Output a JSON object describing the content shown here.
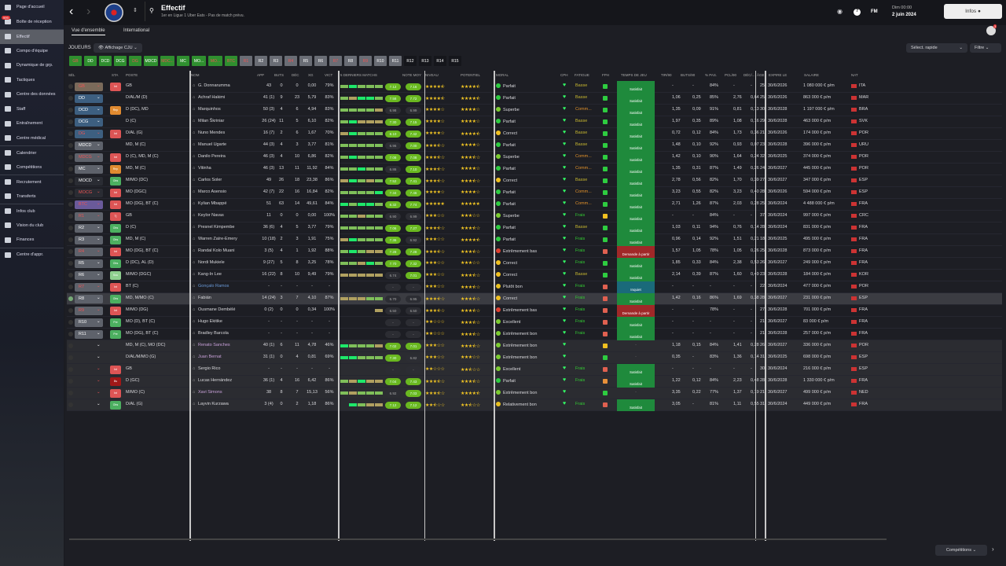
{
  "sidebar": {
    "items": [
      "Page d'accueil",
      "Boîte de réception",
      "Effectif",
      "Compo d'équipe",
      "Dynamique de grp.",
      "Tactiques",
      "Centre des données",
      "Staff",
      "Entraînement",
      "Centre médical",
      "Calendrier",
      "Compétitions",
      "Recrutement",
      "Transferts",
      "Infos club",
      "Vision du club",
      "Finances",
      "Centre d'appr."
    ],
    "inbox_badge": "999",
    "active": "Effectif"
  },
  "header": {
    "title": "Effectif",
    "subtitle": "1er en Ligue 1 Uber Eats - Pas de match prévu.",
    "manager": "FM",
    "time": "Dim 00:00",
    "date": "2 juin 2024",
    "infos": "Infos",
    "notif": "3"
  },
  "tabs": [
    "Vue d'ensemble",
    "International"
  ],
  "toolbar": {
    "label": "JOUEURS",
    "view": "Affichage CJU",
    "quick": "Sélect. rapide",
    "filter": "Filtre"
  },
  "formation_buttons": [
    {
      "l": "GB",
      "c": "#2f8f2f",
      "r": true
    },
    {
      "l": "DD",
      "c": "#2f8f2f"
    },
    {
      "l": "DCD",
      "c": "#2f8f2f"
    },
    {
      "l": "DCG",
      "c": "#2f8f2f"
    },
    {
      "l": "DG",
      "c": "#2f8f2f",
      "r": true
    },
    {
      "l": "MDCD",
      "c": "#2f8f2f"
    },
    {
      "l": "MDC...",
      "c": "#2f8f2f",
      "r": true
    },
    {
      "l": "MC",
      "c": "#2f8f2f"
    },
    {
      "l": "MO...",
      "c": "#2f8f2f"
    },
    {
      "l": "MO...",
      "c": "#2f8f2f",
      "r": true
    },
    {
      "l": "BTC",
      "c": "#2f8f2f",
      "r": true
    },
    {
      "l": "R1",
      "c": "#6a6d75",
      "r": true
    },
    {
      "l": "R2",
      "c": "#6a6d75"
    },
    {
      "l": "R3",
      "c": "#6a6d75"
    },
    {
      "l": "R4",
      "c": "#6a6d75",
      "r": true
    },
    {
      "l": "R5",
      "c": "#6a6d75"
    },
    {
      "l": "R6",
      "c": "#6a6d75"
    },
    {
      "l": "R7",
      "c": "#6a6d75",
      "r": true
    },
    {
      "l": "R8",
      "c": "#6a6d75"
    },
    {
      "l": "R9",
      "c": "#6a6d75",
      "r": true
    },
    {
      "l": "R10",
      "c": "#6a6d75"
    },
    {
      "l": "R11",
      "c": "#6a6d75"
    },
    {
      "l": "R12",
      "c": "#15161b"
    },
    {
      "l": "R13",
      "c": "#15161b"
    },
    {
      "l": "R14",
      "c": "#15161b"
    },
    {
      "l": "R15",
      "c": "#15161b"
    }
  ],
  "columns": [
    "SÉL",
    "STA",
    "POSTE",
    "NOM",
    "APP",
    "BUTS",
    "DÉC",
    "XG",
    "VICT",
    "5 DERNIERS MATCHS",
    "NOTE MOY",
    "NIVEAU",
    "POTENTIEL",
    "MORAL",
    "CPH",
    "FATIGUE",
    "FPH",
    "TEMPS DE JEU",
    "TIR/90",
    "BUTS/90",
    "% PAS.",
    "PCL/90",
    "DÉC/...",
    "ÂGE",
    "EXPIRE LE",
    "SALAIRE",
    "NAT"
  ],
  "players": [
    [
      "GB",
      "#7a6a5a",
      1,
      "Int",
      "GB",
      "G. Donnarumma",
      "43",
      "0",
      "0",
      "0,00",
      "79%",
      "gGggg",
      "7.12",
      "7.16",
      4.5,
      4.5,
      "Parfait",
      "Basse",
      "g",
      "Satisfait",
      "-",
      "-",
      "84%",
      "-",
      "-",
      "25",
      "30/6/2026",
      "1 080 000 € p/m",
      "ITA"
    ],
    [
      "DD",
      "#3d5f80",
      0,
      "",
      "D/AL/M (D)",
      "Achraf Hakimi",
      "41 (1)",
      "9",
      "23",
      "5,79",
      "83%",
      "goGGg",
      "7.58",
      "7.72",
      4.5,
      4.5,
      "Parfait",
      "Basse",
      "g",
      "Satisfait",
      "1,06",
      "0,25",
      "85%",
      "2,76",
      "0,64",
      "25",
      "30/6/2026",
      "863 000 € p/m",
      "MAR"
    ],
    [
      "DCD",
      "#3d5f80",
      0,
      "Rep",
      "D (DC), MD",
      "Marquinhos",
      "50 (3)",
      "4",
      "6",
      "4,94",
      "83%",
      "ggggo",
      "6.98",
      "6.99",
      4,
      4,
      "Superbe",
      "Comm...",
      "g",
      "Satisfait",
      "1,35",
      "0,09",
      "91%",
      "0,81",
      "0,13",
      "30",
      "30/6/2028",
      "1 197 000 € p/m",
      "BRA"
    ],
    [
      "DCG",
      "#3d5f80",
      0,
      "",
      "D (C)",
      "Milan Škriniar",
      "26 (24)",
      "11",
      "5",
      "6,10",
      "82%",
      "gGooo",
      "7.30",
      "7.15",
      4,
      4,
      "Parfait",
      "Basse",
      "g",
      "Satisfait",
      "1,97",
      "0,35",
      "89%",
      "1,08",
      "0,16",
      "29",
      "30/6/2028",
      "463 000 € p/m",
      "SVK"
    ],
    [
      "DG",
      "#3d5f80",
      1,
      "Int",
      "D/AL (G)",
      "Nuno Mendes",
      "16 (7)",
      "2",
      "6",
      "1,67",
      "70%",
      "oGggg",
      "8.10",
      "7.42",
      4,
      4.5,
      "Correct",
      "Basse",
      "g",
      "Satisfait",
      "0,72",
      "0,12",
      "84%",
      "1,73",
      "0,36",
      "21",
      "30/6/2026",
      "174 000 € p/m",
      "POR"
    ],
    [
      "MDCD",
      "#5e626b",
      0,
      "",
      "MD, M (C)",
      "Manuel Ugarte",
      "44 (3)",
      "4",
      "3",
      "3,77",
      "81%",
      "ggggg",
      "6.96",
      "7.00",
      3.5,
      4,
      "Parfait",
      "Basse",
      "g",
      "Satisfait",
      "1,48",
      "0,10",
      "92%",
      "0,93",
      "0,07",
      "23",
      "30/6/2028",
      "396 000 € p/m",
      "URU"
    ],
    [
      "MDCG",
      "#5e626b",
      1,
      "Int",
      "D (C), MD, M (C)",
      "Danilo Pereira",
      "46 (3)",
      "4",
      "10",
      "6,86",
      "82%",
      "gGggg",
      "7.08",
      "7.08",
      3.5,
      3.5,
      "Superbe",
      "Comm...",
      "g",
      "Satisfait",
      "1,42",
      "0,10",
      "90%",
      "1,64",
      "0,24",
      "32",
      "30/6/2025",
      "374 000 € p/m",
      "POR"
    ],
    [
      "MC",
      "#5e626b",
      0,
      "Rep",
      "MD, M (C)",
      "Vitinha",
      "46 (3)",
      "13",
      "11",
      "11,92",
      "84%",
      "ggGgg",
      "6.86",
      "7.10",
      3.5,
      4,
      "Parfait",
      "Comm...",
      "g",
      "Satisfait",
      "1,35",
      "0,31",
      "87%",
      "1,49",
      "0,26",
      "24",
      "30/6/2027",
      "445 000 € p/m",
      "POR"
    ],
    [
      "MOCD",
      "#2a2c33",
      0,
      "Obs",
      "M/MO (DC)",
      "Carlos Soler",
      "49",
      "26",
      "18",
      "23,38",
      "86%",
      "oGgog",
      "7.52",
      "7.41",
      3.5,
      3.5,
      "Correct",
      "Basse",
      "g",
      "Satisfait",
      "2,78",
      "0,56",
      "82%",
      "1,70",
      "0,39",
      "27",
      "30/6/2027",
      "347 000 € p/m",
      "ESP"
    ],
    [
      "MOCG",
      "#2a2c33",
      1,
      "Int",
      "MO (DGC)",
      "Marco Asensio",
      "42 (7)",
      "22",
      "16",
      "16,84",
      "82%",
      "ggggG",
      "7.34",
      "7.46",
      4,
      4,
      "Parfait",
      "Comm...",
      "g",
      "Satisfait",
      "3,23",
      "0,55",
      "82%",
      "3,23",
      "0,40",
      "28",
      "30/6/2026",
      "594 000 € p/m",
      "ESP"
    ],
    [
      "BTC",
      "#6a5a9a",
      1,
      "Int",
      "MO (DG), BT (C)",
      "Kylian Mbappé",
      "51",
      "63",
      "14",
      "49,61",
      "84%",
      "GgGGg",
      "8.32",
      "7.74",
      5,
      5,
      "Parfait",
      "Comm...",
      "g",
      "Satisfait",
      "2,71",
      "1,26",
      "87%",
      "2,03",
      "0,28",
      "25",
      "30/6/2024",
      "4 488 000 € p/m",
      "FRA"
    ],
    [
      "R1",
      "#5e626b",
      1,
      "Tj",
      "GB",
      "Keylor Navas",
      "11",
      "0",
      "0",
      "0,00",
      "100%",
      "ggogg",
      "6.90",
      "6.99",
      3,
      3,
      "Superbe",
      "Frais",
      "y",
      "Satisfait",
      "-",
      "-",
      "84%",
      "-",
      "-",
      "37",
      "30/6/2024",
      "997 000 € p/m",
      "CRC"
    ],
    [
      "R2",
      "#5e626b",
      0,
      "Obs",
      "D (C)",
      "Presnel Kimpembe",
      "36 (6)",
      "4",
      "5",
      "3,77",
      "79%",
      "ggggg",
      "7.06",
      "7.27",
      3.5,
      3.5,
      "Parfait",
      "Basse",
      "g",
      "Satisfait",
      "1,03",
      "0,11",
      "94%",
      "0,76",
      "0,14",
      "28",
      "30/6/2024",
      "831 000 € p/m",
      "FRA"
    ],
    [
      "R3",
      "#5e626b",
      0,
      "Obs",
      "MD, M (C)",
      "Warren Zaïre-Emery",
      "10 (18)",
      "2",
      "3",
      "1,91",
      "75%",
      "oGggg",
      "7.36",
      "6.92",
      3,
      4.5,
      "Parfait",
      "Frais",
      "g",
      "Satisfait",
      "0,96",
      "0,14",
      "92%",
      "1,51",
      "0,21",
      "18",
      "30/6/2025",
      "495 000 € p/m",
      "FRA"
    ],
    [
      "R4",
      "#5e626b",
      1,
      "Int",
      "MO (DG), BT (C)",
      "Randal Kolo Muani",
      "3 (5)",
      "4",
      "1",
      "1,92",
      "88%",
      "gGgoo",
      "7.28",
      "7.28",
      3.5,
      3.5,
      "Extrêmement bas",
      "Frais",
      "r",
      "Demande à partir",
      "1,57",
      "1,05",
      "78%",
      "1,05",
      "0,26",
      "25",
      "30/6/2028",
      "873 000 € p/m",
      "FRA"
    ],
    [
      "R5",
      "#5e626b",
      0,
      "Obs",
      "D (DC), AL (D)",
      "Nordi Mukiele",
      "9 (27)",
      "5",
      "8",
      "3,25",
      "78%",
      "ggoGg",
      "7.70",
      "7.32",
      3,
      3,
      "Correct",
      "Frais",
      "g",
      "Satisfait",
      "1,85",
      "0,33",
      "84%",
      "2,38",
      "0,53",
      "26",
      "30/6/2027",
      "249 000 € p/m",
      "FRA"
    ],
    [
      "R6",
      "#5e626b",
      0,
      "Sou",
      "M/MO (DGC)",
      "Kang-In Lee",
      "16 (22)",
      "8",
      "10",
      "9,49",
      "79%",
      "ooooo",
      "6.74",
      "7.01",
      3,
      3.5,
      "Correct",
      "Basse",
      "g",
      "Satisfait",
      "2,14",
      "0,39",
      "87%",
      "1,60",
      "0,49",
      "23",
      "30/6/2028",
      "184 000 € p/m",
      "KOR"
    ],
    [
      "R7",
      "#5e626b",
      1,
      "Int",
      "BT (C)",
      "Gonçalo Ramos",
      "-",
      "-",
      "-",
      "-",
      "-",
      "",
      "-",
      "-",
      3,
      3.5,
      "Plutôt bon",
      "Frais",
      "r",
      "Inquiet",
      "-",
      "-",
      "-",
      "-",
      "-",
      "22",
      "30/6/2024",
      "477 000 € p/m",
      "POR"
    ],
    [
      "R8",
      "#5e626b",
      0,
      "Obs",
      "MD, M/MO (C)",
      "Fabián",
      "14 (24)",
      "3",
      "7",
      "4,10",
      "87%",
      "ooogg",
      "6.70",
      "6.95",
      3.5,
      3.5,
      "Correct",
      "Frais",
      "r",
      "Satisfait",
      "1,42",
      "0,16",
      "86%",
      "1,69",
      "0,38",
      "28",
      "30/6/2027",
      "231 000 € p/m",
      "ESP"
    ],
    [
      "R9",
      "#5e626b",
      1,
      "Int",
      "M/MO (DG)",
      "Ousmane Dembélé",
      "0 (2)",
      "0",
      "0",
      "0,34",
      "100%",
      "    o",
      "6.50",
      "6.50",
      3.5,
      3.5,
      "Extrêmement bas",
      "Frais",
      "r",
      "Demande à partir",
      "-",
      "-",
      "78%",
      "-",
      "-",
      "27",
      "30/6/2028",
      "701 000 € p/m",
      "FRA"
    ],
    [
      "R10",
      "#5e626b",
      0,
      "Pre",
      "MO (D), BT (C)",
      "Hugo Ekitike",
      "-",
      "-",
      "-",
      "-",
      "-",
      "",
      "-",
      "-",
      2,
      3.5,
      "Excellent",
      "Frais",
      "r",
      "Satisfait",
      "-",
      "-",
      "-",
      "-",
      "-",
      "21",
      "30/6/2027",
      "83 000 € p/m",
      "FRA"
    ],
    [
      "R11",
      "#5e626b",
      0,
      "Pre",
      "MO (DG), BT (C)",
      "Bradley Barcola",
      "-",
      "-",
      "-",
      "-",
      "-",
      "",
      "-",
      "-",
      2,
      3.5,
      "Extrêmement bon",
      "Frais",
      "r",
      "Satisfait",
      "-",
      "-",
      "-",
      "-",
      "-",
      "21",
      "30/6/2028",
      "257 000 € p/m",
      "FRA"
    ],
    [
      "",
      "",
      0,
      "",
      "MD, M (C), MO (DC)",
      "Renato Sanches",
      "40 (1)",
      "6",
      "11",
      "4,78",
      "46%",
      "Ggggo",
      "7.02",
      "7.01",
      3,
      3.5,
      "Extrêmement bon",
      "",
      "y",
      "-",
      "1,18",
      "0,15",
      "84%",
      "1,41",
      "0,28",
      "26",
      "30/6/2027",
      "336 000 € p/m",
      "POR"
    ],
    [
      "",
      "",
      0,
      "",
      "D/AL/M/MO (G)",
      "Juan Bernat",
      "31 (1)",
      "0",
      "4",
      "0,81",
      "69%",
      "GGggg",
      "7.30",
      "6.82",
      3,
      3,
      "Extrêmement bon",
      "",
      "g",
      "-",
      "0,35",
      "-",
      "83%",
      "1,36",
      "0,14",
      "31",
      "30/6/2025",
      "698 000 € p/m",
      "ESP"
    ],
    [
      "",
      "",
      1,
      "Int",
      "GB",
      "Sergio Rico",
      "-",
      "-",
      "-",
      "-",
      "-",
      "",
      "-",
      "-",
      2,
      2.5,
      "Excellent",
      "Frais",
      "r",
      "Satisfait",
      "-",
      "-",
      "-",
      "-",
      "-",
      "30",
      "30/6/2024",
      "216 000 € p/m",
      "ESP"
    ],
    [
      "",
      "",
      1,
      "Bs",
      "D (GC)",
      "Lucas Hernández",
      "36 (1)",
      "4",
      "16",
      "6,42",
      "86%",
      "goGoo",
      "7.04",
      "7.43",
      3.5,
      3.5,
      "Parfait",
      "Frais",
      "o",
      "Satisfait",
      "1,22",
      "0,12",
      "84%",
      "2,23",
      "0,48",
      "28",
      "30/6/2028",
      "1 330 000 € p/m",
      "FRA"
    ],
    [
      "",
      "",
      1,
      "Int",
      "M/MO (C)",
      "Xavi Simons",
      "38",
      "8",
      "7",
      "15,13",
      "56%",
      "goggg",
      "6.92",
      "7.03",
      3.5,
      4.5,
      "Extrêmement bon",
      "",
      "g",
      "-",
      "3,35",
      "0,22",
      "77%",
      "1,37",
      "0,19",
      "21",
      "30/6/2027",
      "499 000 € p/m",
      "NED"
    ],
    [
      "",
      "",
      0,
      "Obs",
      "D/AL (G)",
      "Layvin Kurzawa",
      "3 (4)",
      "0",
      "2",
      "1,18",
      "86%",
      " Ggoo",
      "7.12",
      "7.12",
      2.5,
      2.5,
      "Relativement bon",
      "Frais",
      "r",
      "Satisfait",
      "3,05",
      "-",
      "81%",
      "1,11",
      "0,55",
      "31",
      "30/6/2024",
      "449 000 € p/m",
      "FRA"
    ]
  ],
  "bottom": {
    "competitions": "Compétitions"
  }
}
